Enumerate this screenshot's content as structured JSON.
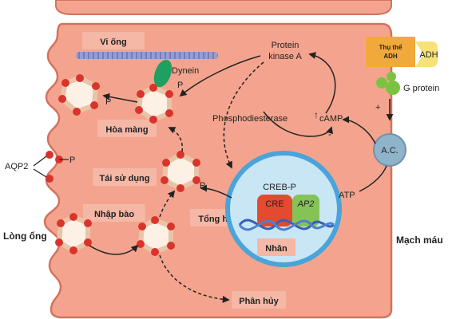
{
  "colors": {
    "cell": "#f4a48e",
    "cell_stroke": "#d2735e",
    "label_box": "#f5b7a6",
    "vesicle": "#d9342b",
    "nucleus": "#4aa3d9",
    "nucleus_fill": "#c9e6f5",
    "adh_orange": "#f2a93b",
    "adh_yellow": "#f7e27a",
    "g_protein": "#7cc242",
    "dynein": "#20a060",
    "microtubule": "#9a9ccf",
    "ac": "#8fb3c9"
  },
  "labels": {
    "vi_ong": "Vi ống",
    "dynein": "Dynein",
    "protein_kinase_a": [
      "Protein",
      "kinase A"
    ],
    "p": "P",
    "hoa_mang": "Hòa màng",
    "phosphodiesterase": "Phosphodiesterase",
    "camp": "cAMP",
    "plus": "+",
    "minus": "-",
    "aqp2": "AQP2",
    "tai_su_dung": "Tái sử dụng",
    "creb_p": "CREB-P",
    "cre": "CRE",
    "ap2": "AP2",
    "atp": "ATP",
    "nhap_bao": "Nhập bào",
    "tong_hop": "Tổng hợp",
    "long_ong": "Lòng ống",
    "nhan": "Nhân",
    "mach_mau": "Mạch máu",
    "phan_huy": "Phân hủy",
    "thu_the_adh": [
      "Thụ thể",
      "ADH"
    ],
    "adh": "ADH",
    "g_protein": "G protein",
    "ac": "A.C."
  }
}
